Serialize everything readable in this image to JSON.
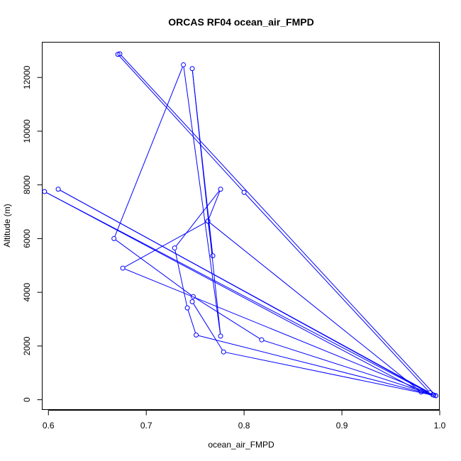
{
  "chart_data": {
    "type": "line",
    "title": "ORCAS RF04 ocean_air_FMPD",
    "xlabel": "ocean_air_FMPD",
    "ylabel": "Altitude (m)",
    "xlim": [
      0.594,
      1.0
    ],
    "ylim": [
      -380,
      13300
    ],
    "x_ticks": [
      0.6,
      0.7,
      0.8,
      0.9,
      1.0
    ],
    "x_tick_labels": [
      "0.6",
      "0.7",
      "0.8",
      "0.9",
      "1.0"
    ],
    "y_ticks": [
      0,
      2000,
      4000,
      6000,
      8000,
      10000,
      12000
    ],
    "y_tick_labels": [
      "0",
      "2000",
      "4000",
      "6000",
      "8000",
      "10000",
      "12000"
    ],
    "grid": false,
    "series": [
      {
        "color": "#0000ff",
        "marker": "open-circle",
        "points": [
          {
            "x": 0.996,
            "y": 150
          },
          {
            "x": 0.673,
            "y": 12880
          },
          {
            "x": 0.671,
            "y": 12860
          },
          {
            "x": 0.8,
            "y": 7720
          },
          {
            "x": 0.99,
            "y": 260
          },
          {
            "x": 0.61,
            "y": 7840
          },
          {
            "x": 0.993,
            "y": 180
          },
          {
            "x": 0.596,
            "y": 7750
          },
          {
            "x": 0.981,
            "y": 290
          },
          {
            "x": 0.763,
            "y": 6650
          },
          {
            "x": 0.776,
            "y": 7840
          },
          {
            "x": 0.729,
            "y": 5650
          },
          {
            "x": 0.742,
            "y": 3420
          },
          {
            "x": 0.751,
            "y": 2410
          },
          {
            "x": 0.994,
            "y": 170
          },
          {
            "x": 0.676,
            "y": 4900
          },
          {
            "x": 0.763,
            "y": 6650
          },
          {
            "x": 0.768,
            "y": 5360
          },
          {
            "x": 0.747,
            "y": 12330
          },
          {
            "x": 0.776,
            "y": 2370
          },
          {
            "x": 0.738,
            "y": 12470
          },
          {
            "x": 0.667,
            "y": 6000
          },
          {
            "x": 0.748,
            "y": 3840
          },
          {
            "x": 0.818,
            "y": 2230
          },
          {
            "x": 0.996,
            "y": 150
          },
          {
            "x": 0.779,
            "y": 1780
          },
          {
            "x": 0.747,
            "y": 3650
          }
        ]
      }
    ]
  }
}
